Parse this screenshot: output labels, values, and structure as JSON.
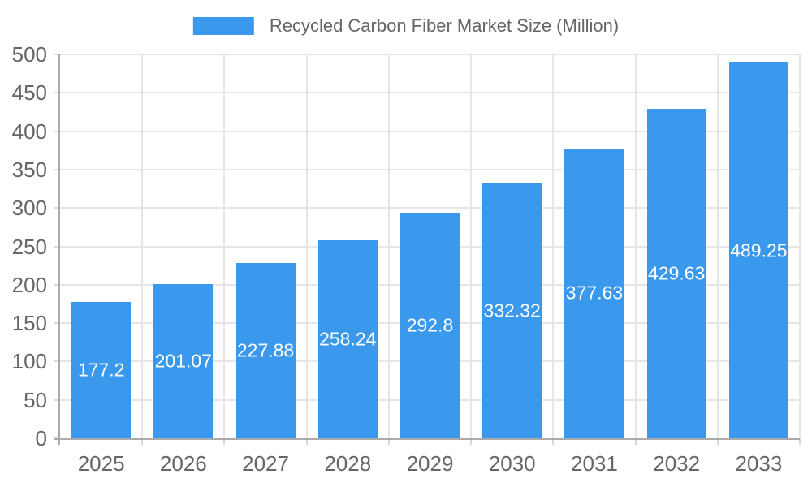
{
  "chart_data": {
    "type": "bar",
    "title": "",
    "categories": [
      "2025",
      "2026",
      "2027",
      "2028",
      "2029",
      "2030",
      "2031",
      "2032",
      "2033"
    ],
    "series": [
      {
        "name": "Recycled Carbon Fiber Market Size (Million)",
        "color": "#3A99EC",
        "values": [
          177.2,
          201.07,
          227.88,
          258.24,
          292.8,
          332.32,
          377.63,
          429.63,
          489.25
        ]
      }
    ],
    "bar_value_labels": [
      "177.2",
      "201.07",
      "227.88",
      "258.24",
      "292.8",
      "332.32",
      "377.63",
      "429.63",
      "489.25"
    ],
    "xlabel": "",
    "ylabel": "",
    "ylim": [
      0,
      500
    ],
    "yticks": [
      0,
      50,
      100,
      150,
      200,
      250,
      300,
      350,
      400,
      450,
      500
    ],
    "grid": {
      "horizontal": true,
      "vertical": true
    },
    "legend_position": "top",
    "colors": {
      "bar": "#3A99EC",
      "bar_label_text": "#FFFFFF",
      "axis_text": "#666666",
      "legend_text": "#666666",
      "gridline": "#E6E6E6",
      "tick_mark": "#D9D9D9",
      "axis_line": "#ABABAB",
      "background": "#FFFFFF"
    }
  }
}
